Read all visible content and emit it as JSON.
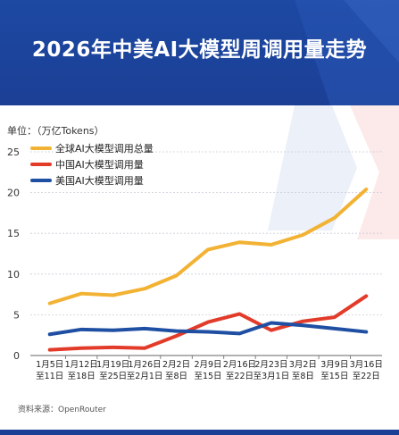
{
  "header": {
    "title": "2026年中美AI大模型周调用量走势"
  },
  "unit_label": "单位：（万亿Tokens）",
  "source": "资料来源：OpenRouter",
  "colors": {
    "total": "#f2b233",
    "china": "#e23b2a",
    "us": "#1f4fa3",
    "header": "#1b3f95"
  },
  "chart_data": {
    "type": "line",
    "title": "2026年中美AI大模型周调用量走势",
    "ylabel": "单位：（万亿Tokens）",
    "xlabel": "",
    "ylim": [
      0,
      25
    ],
    "yticks": [
      "0",
      "5",
      "10",
      "15",
      "20",
      "25"
    ],
    "categories": [
      [
        "1月5日",
        "至11日"
      ],
      [
        "1月12日",
        "至18日"
      ],
      [
        "1月19日",
        "至25日"
      ],
      [
        "1月26日",
        "至2月1日"
      ],
      [
        "2月2日",
        "至8日"
      ],
      [
        "2月9日",
        "至15日"
      ],
      [
        "2月16日",
        "至22日"
      ],
      [
        "2月23日",
        "至3月1日"
      ],
      [
        "3月2日",
        "至8日"
      ],
      [
        "3月9日",
        "至15日"
      ],
      [
        "3月16日",
        "至22日"
      ]
    ],
    "legend_position": "top-left",
    "series": [
      {
        "name": "全球AI大模型调用总量",
        "color": "#f2b233",
        "values": [
          6.4,
          7.6,
          7.4,
          8.2,
          9.8,
          13.0,
          13.9,
          13.6,
          14.8,
          16.9,
          20.4
        ]
      },
      {
        "name": "中国AI大模型调用量",
        "color": "#e23b2a",
        "values": [
          0.7,
          0.9,
          1.0,
          0.9,
          2.4,
          4.1,
          5.1,
          3.1,
          4.2,
          4.7,
          7.3
        ]
      },
      {
        "name": "美国AI大模型调用量",
        "color": "#1f4fa3",
        "values": [
          2.6,
          3.2,
          3.1,
          3.3,
          3.0,
          2.9,
          2.7,
          4.0,
          3.7,
          3.3,
          2.9
        ]
      }
    ]
  }
}
